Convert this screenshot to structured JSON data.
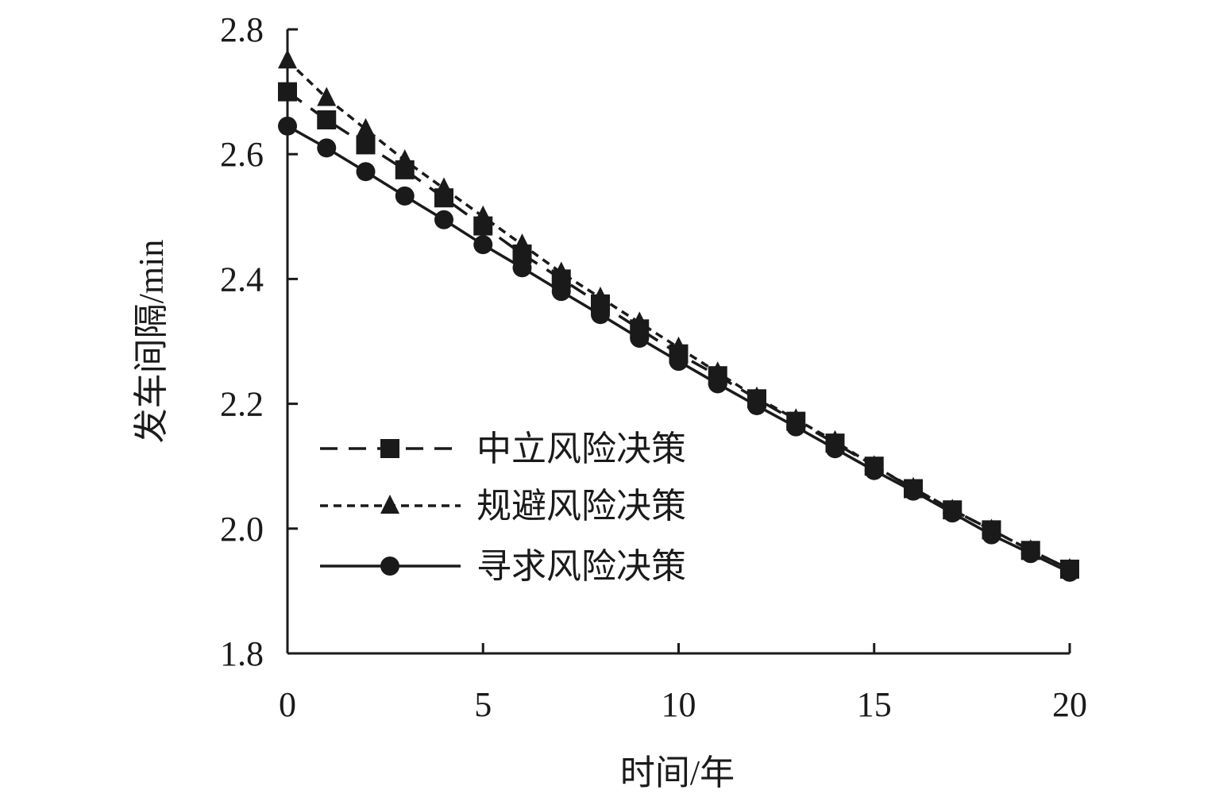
{
  "chart_data": {
    "type": "line",
    "title": "",
    "xlabel": "时间/年",
    "ylabel": "发车间隔/min",
    "xlim": [
      0,
      20
    ],
    "ylim": [
      1.8,
      2.8
    ],
    "x_ticks": [
      0,
      5,
      10,
      15,
      20
    ],
    "x_tick_labels": [
      "0",
      "5",
      "10",
      "15",
      "20"
    ],
    "y_ticks": [
      1.8,
      2.0,
      2.2,
      2.4,
      2.6,
      2.8
    ],
    "y_tick_labels": [
      "1.8",
      "2.0",
      "2.2",
      "2.4",
      "2.6",
      "2.8"
    ],
    "grid": false,
    "legend_position": "center-left",
    "x": [
      0,
      1,
      2,
      3,
      4,
      5,
      6,
      7,
      8,
      9,
      10,
      11,
      12,
      13,
      14,
      15,
      16,
      17,
      18,
      19,
      20
    ],
    "series": [
      {
        "name": "中立风险决策",
        "line_style": "dashed",
        "marker": "square",
        "color": "#1a1a1a",
        "values": [
          2.7,
          2.655,
          2.615,
          2.575,
          2.53,
          2.485,
          2.44,
          2.4,
          2.36,
          2.32,
          2.28,
          2.245,
          2.208,
          2.172,
          2.137,
          2.1,
          2.064,
          2.03,
          1.998,
          1.965,
          1.935
        ]
      },
      {
        "name": "规避风险决策",
        "line_style": "short-dashed",
        "marker": "triangle",
        "color": "#1a1a1a",
        "values": [
          2.75,
          2.69,
          2.64,
          2.59,
          2.545,
          2.5,
          2.455,
          2.41,
          2.37,
          2.33,
          2.29,
          2.25,
          2.21,
          2.175,
          2.14,
          2.1,
          2.065,
          2.03,
          1.998,
          1.965,
          1.935
        ]
      },
      {
        "name": "寻求风险决策",
        "line_style": "solid",
        "marker": "circle",
        "color": "#1a1a1a",
        "values": [
          2.645,
          2.61,
          2.572,
          2.533,
          2.495,
          2.455,
          2.418,
          2.38,
          2.343,
          2.305,
          2.268,
          2.232,
          2.197,
          2.163,
          2.128,
          2.093,
          2.06,
          2.025,
          1.99,
          1.96,
          1.93
        ]
      }
    ]
  }
}
